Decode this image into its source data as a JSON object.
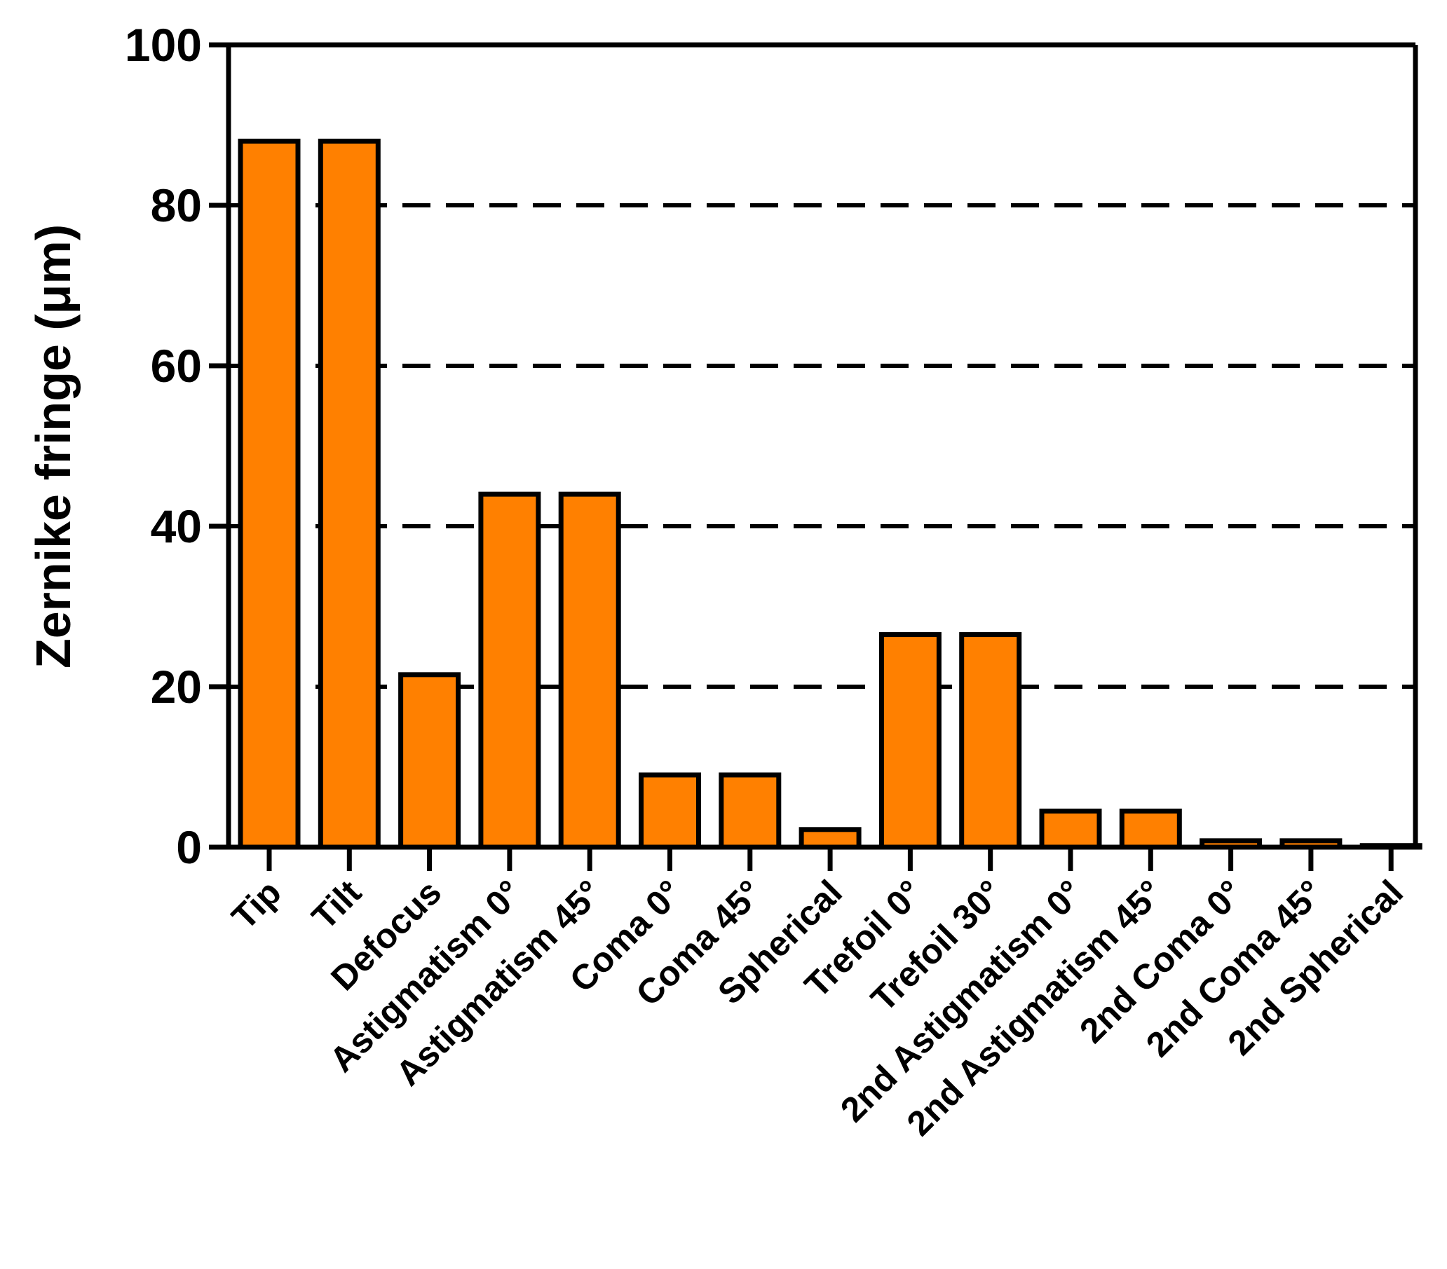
{
  "chart_data": {
    "type": "bar",
    "title": "",
    "xlabel": "",
    "ylabel": "Zernike fringe (μm)",
    "ylim": [
      0,
      100
    ],
    "yticks": [
      0,
      20,
      40,
      60,
      80,
      100
    ],
    "grid": "dashed horizontal at 20, 40, 60, 80",
    "categories": [
      "Tip",
      "Tilt",
      "Defocus",
      "Astigmatism 0°",
      "Astigmatism 45°",
      "Coma 0°",
      "Coma 45°",
      "Spherical",
      "Trefoil 0°",
      "Trefoil 30°",
      "2nd Astigmatism 0°",
      "2nd Astigmatism 45°",
      "2nd Coma 0°",
      "2nd Coma 45°",
      "2nd Spherical"
    ],
    "values": [
      88,
      88,
      21.5,
      44,
      44,
      9,
      9,
      2.2,
      26.5,
      26.5,
      4.5,
      4.5,
      0.8,
      0.8,
      0.2
    ],
    "colors": {
      "bar_fill": "#ff8000",
      "bar_stroke": "#000000",
      "axis": "#000000"
    }
  }
}
